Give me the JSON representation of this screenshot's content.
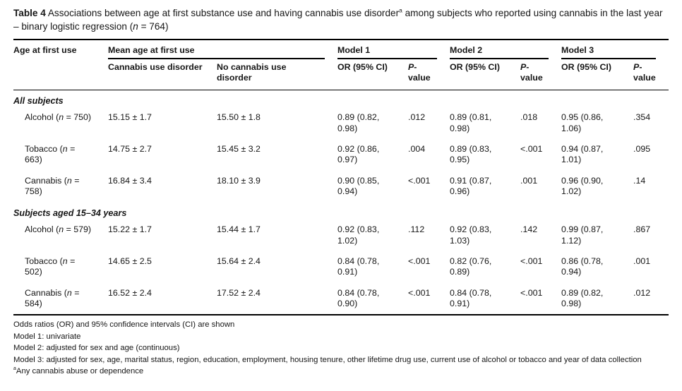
{
  "caption": {
    "label": "Table 4",
    "text_1": " Associations between age at first substance use and having cannabis use disorder",
    "sup": "a",
    "text_2": " among subjects who reported using cannabis in the last year – binary logistic regression (",
    "n": "n",
    "text_3": " = 764)"
  },
  "columns": {
    "age": "Age at first use",
    "mean_group": "Mean age at first use",
    "cud": "Cannabis use disorder",
    "no_cud": "No cannabis use disorder",
    "models": [
      "Model 1",
      "Model 2",
      "Model 3"
    ],
    "or_ci": "OR (95% CI)",
    "p_italic": "P",
    "p_rest": "-value"
  },
  "sections": [
    {
      "header": "All subjects",
      "rows": [
        {
          "label_pre": "Alcohol (",
          "label_n": "n",
          "label_post": " = 750)",
          "cud_mean": "15.15 ± 1.7",
          "no_cud_mean": "15.50 ± 1.8",
          "m1_or": "0.89 (0.82, 0.98)",
          "m1_p": ".012",
          "m2_or": "0.89 (0.81, 0.98)",
          "m2_p": ".018",
          "m3_or": "0.95 (0.86, 1.06)",
          "m3_p": ".354"
        },
        {
          "label_pre": "Tobacco (",
          "label_n": "n",
          "label_post": " = 663)",
          "cud_mean": "14.75 ± 2.7",
          "no_cud_mean": "15.45 ± 3.2",
          "m1_or": "0.92 (0.86, 0.97)",
          "m1_p": ".004",
          "m2_or": "0.89 (0.83, 0.95)",
          "m2_p": "<.001",
          "m3_or": "0.94 (0.87, 1.01)",
          "m3_p": ".095"
        },
        {
          "label_pre": "Cannabis (",
          "label_n": "n",
          "label_post": " = 758)",
          "cud_mean": "16.84 ± 3.4",
          "no_cud_mean": "18.10 ± 3.9",
          "m1_or": "0.90 (0.85, 0.94)",
          "m1_p": "<.001",
          "m2_or": "0.91 (0.87, 0.96)",
          "m2_p": ".001",
          "m3_or": "0.96 (0.90, 1.02)",
          "m3_p": ".14"
        }
      ]
    },
    {
      "header": "Subjects aged 15–34 years",
      "rows": [
        {
          "label_pre": "Alcohol (",
          "label_n": "n",
          "label_post": " = 579)",
          "cud_mean": "15.22 ± 1.7",
          "no_cud_mean": "15.44 ± 1.7",
          "m1_or": "0.92 (0.83, 1.02)",
          "m1_p": ".112",
          "m2_or": "0.92 (0.83, 1.03)",
          "m2_p": ".142",
          "m3_or": "0.99 (0.87, 1.12)",
          "m3_p": ".867"
        },
        {
          "label_pre": "Tobacco (",
          "label_n": "n",
          "label_post": " = 502)",
          "cud_mean": "14.65 ± 2.5",
          "no_cud_mean": "15.64 ± 2.4",
          "m1_or": "0.84 (0.78, 0.91)",
          "m1_p": "<.001",
          "m2_or": "0.82 (0.76, 0.89)",
          "m2_p": "<.001",
          "m3_or": "0.86 (0.78, 0.94)",
          "m3_p": ".001"
        },
        {
          "label_pre": "Cannabis (",
          "label_n": "n",
          "label_post": " = 584)",
          "cud_mean": "16.52 ± 2.4",
          "no_cud_mean": "17.52 ± 2.4",
          "m1_or": "0.84 (0.78, 0.90)",
          "m1_p": "<.001",
          "m2_or": "0.84 (0.78, 0.91)",
          "m2_p": "<.001",
          "m3_or": "0.89 (0.82, 0.98)",
          "m3_p": ".012"
        }
      ]
    }
  ],
  "footnotes": [
    {
      "sup": "",
      "text": "Odds ratios (OR) and 95% confidence intervals (CI) are shown"
    },
    {
      "sup": "",
      "text": "Model 1: univariate"
    },
    {
      "sup": "",
      "text": "Model 2: adjusted for sex and age (continuous)"
    },
    {
      "sup": "",
      "text": "Model 3: adjusted for sex, age, marital status, region, education, employment, housing tenure, other lifetime drug use, current use of alcohol or tobacco and year of data collection"
    },
    {
      "sup": "a",
      "text": "Any cannabis abuse or dependence"
    }
  ]
}
